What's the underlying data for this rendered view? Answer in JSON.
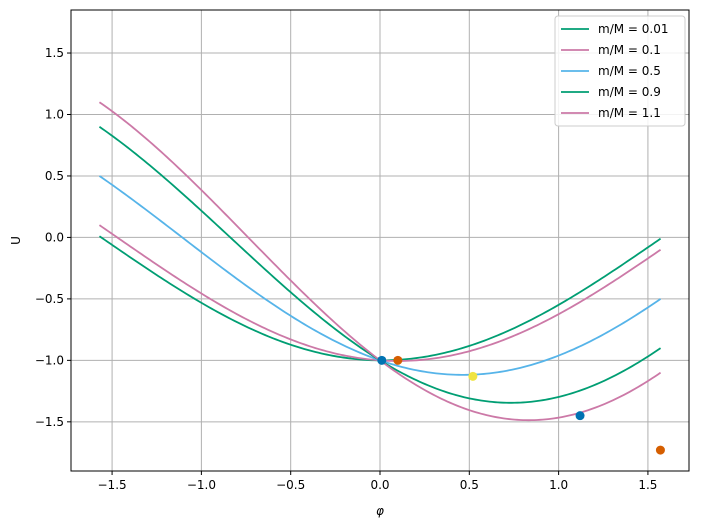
{
  "chart_data": {
    "type": "line",
    "xlabel": "φ",
    "ylabel": "U",
    "xlim": [
      -1.73,
      1.73
    ],
    "ylim": [
      -1.9,
      1.85
    ],
    "xticks": [
      -1.5,
      -1.0,
      -0.5,
      0.0,
      0.5,
      1.0,
      1.5
    ],
    "xtick_labels": [
      "−1.5",
      "−1.0",
      "−0.5",
      "0.0",
      "0.5",
      "1.0",
      "1.5"
    ],
    "yticks": [
      -1.5,
      -1.0,
      -0.5,
      0.0,
      0.5,
      1.0,
      1.5
    ],
    "ytick_labels": [
      "−1.5",
      "−1.0",
      "−0.5",
      "0.0",
      "0.5",
      "1.0",
      "1.5"
    ],
    "grid": true,
    "legend_position": "top-right",
    "series": [
      {
        "name": "m/M = 0.01",
        "ratio": 0.01,
        "color": "#009E73"
      },
      {
        "name": "m/M = 0.1",
        "ratio": 0.1,
        "color": "#CC79A7"
      },
      {
        "name": "m/M = 0.5",
        "ratio": 0.5,
        "color": "#56B4E9"
      },
      {
        "name": "m/M = 0.9",
        "ratio": 0.9,
        "color": "#009E73"
      },
      {
        "name": "m/M = 1.1",
        "ratio": 1.1,
        "color": "#CC79A7"
      }
    ],
    "minima_points": [
      {
        "x": 0.01,
        "y": -1.0,
        "color": "#0072B2"
      },
      {
        "x": 0.1,
        "y": -1.0,
        "color": "#D55E00"
      },
      {
        "x": 0.52,
        "y": -1.13,
        "color": "#F0E442"
      },
      {
        "x": 1.12,
        "y": -1.45,
        "color": "#0072B2"
      },
      {
        "x": 1.57,
        "y": -1.73,
        "color": "#D55E00"
      }
    ]
  }
}
